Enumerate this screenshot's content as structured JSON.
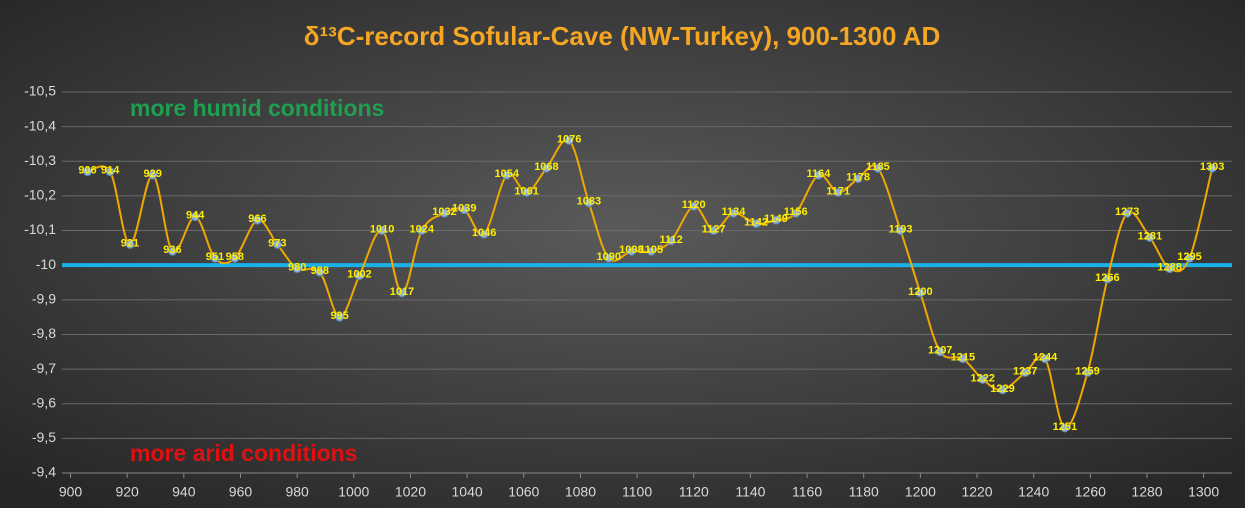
{
  "chart_data": {
    "type": "line",
    "title": "δ¹³C-record Sofular-Cave (NW-Turkey), 900-1300 AD",
    "annotations": [
      "more humid conditions",
      "more arid conditions"
    ],
    "x": [
      906,
      914,
      921,
      929,
      936,
      944,
      951,
      958,
      966,
      973,
      980,
      988,
      995,
      1002,
      1010,
      1017,
      1024,
      1032,
      1039,
      1046,
      1054,
      1061,
      1068,
      1076,
      1083,
      1090,
      1098,
      1105,
      1112,
      1120,
      1127,
      1134,
      1142,
      1149,
      1156,
      1164,
      1171,
      1178,
      1185,
      1193,
      1200,
      1207,
      1215,
      1222,
      1229,
      1237,
      1244,
      1251,
      1259,
      1266,
      1273,
      1281,
      1288,
      1295,
      1303
    ],
    "series": [
      {
        "name": "δ¹³C",
        "color": "#f0a800",
        "values": [
          -10.27,
          -10.27,
          -10.06,
          -10.26,
          -10.04,
          -10.14,
          -10.02,
          -10.02,
          -10.13,
          -10.06,
          -9.99,
          -9.98,
          -9.85,
          -9.97,
          -10.1,
          -9.92,
          -10.1,
          -10.15,
          -10.16,
          -10.09,
          -10.26,
          -10.21,
          -10.28,
          -10.36,
          -10.18,
          -10.02,
          -10.04,
          -10.04,
          -10.07,
          -10.17,
          -10.1,
          -10.15,
          -10.12,
          -10.13,
          -10.15,
          -10.26,
          -10.21,
          -10.25,
          -10.28,
          -10.1,
          -9.92,
          -9.75,
          -9.73,
          -9.67,
          -9.64,
          -9.69,
          -9.73,
          -9.53,
          -9.69,
          -9.96,
          -10.15,
          -10.08,
          -9.99,
          -10.02,
          -10.28
        ]
      }
    ],
    "reference_line": -10,
    "reference_color": "#1ab0e8",
    "xlim": [
      897,
      1310
    ],
    "xticks": [
      900,
      920,
      940,
      960,
      980,
      1000,
      1020,
      1040,
      1060,
      1080,
      1100,
      1120,
      1140,
      1160,
      1180,
      1200,
      1220,
      1240,
      1260,
      1280,
      1300
    ],
    "ylim": [
      -9.4,
      -10.5
    ],
    "yticks": [
      {
        "value": -10.5,
        "label": "-10,5"
      },
      {
        "value": -10.4,
        "label": "-10,4"
      },
      {
        "value": -10.3,
        "label": "-10,3"
      },
      {
        "value": -10.2,
        "label": "-10,2"
      },
      {
        "value": -10.1,
        "label": "-10,1"
      },
      -10,
      {
        "value": -9.9,
        "label": "-9,9"
      },
      {
        "value": -9.8,
        "label": "-9,8"
      },
      {
        "value": -9.7,
        "label": "-9,7"
      },
      {
        "value": -9.6,
        "label": "-9,6"
      },
      {
        "value": -9.5,
        "label": "-9,5"
      },
      {
        "value": -9.4,
        "label": "-9,4"
      }
    ],
    "grid": true
  }
}
